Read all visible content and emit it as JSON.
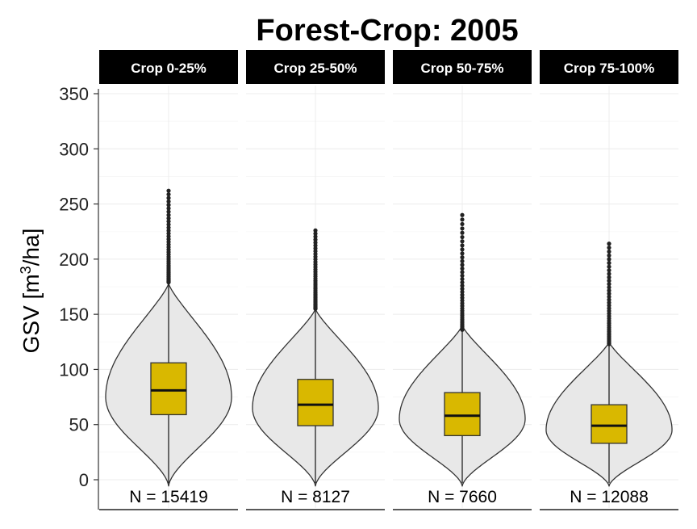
{
  "chart_data": {
    "type": "violin",
    "title": "Forest-Crop: 2005",
    "ylabel": "GSV [m³/ha]",
    "ylabel_base": "GSV [m",
    "ylabel_sup": "3",
    "ylabel_tail": "/ha]",
    "ylim": [
      0,
      350
    ],
    "yticks": [
      "0",
      "50",
      "100",
      "150",
      "200",
      "250",
      "300",
      "350"
    ],
    "grid": true,
    "fill_violin": "#e8e8e8",
    "fill_box": "#d9b800",
    "panels": [
      {
        "label": "Crop 0-25%",
        "n_text": "N = 15419",
        "q1": 59,
        "median": 81,
        "q3": 106,
        "whisker_low": 0,
        "whisker_high": 179,
        "outlier_top": 262,
        "violin_max_y": 178,
        "violin_mode": 75
      },
      {
        "label": "Crop 25-50%",
        "n_text": "N = 8127",
        "q1": 49,
        "median": 68,
        "q3": 91,
        "whisker_low": 0,
        "whisker_high": 155,
        "outlier_top": 226,
        "violin_max_y": 155,
        "violin_mode": 65
      },
      {
        "label": "Crop 50-75%",
        "n_text": "N = 7660",
        "q1": 40,
        "median": 58,
        "q3": 79,
        "whisker_low": 0,
        "whisker_high": 136,
        "outlier_top": 240,
        "violin_max_y": 140,
        "violin_mode": 55
      },
      {
        "label": "Crop 75-100%",
        "n_text": "N = 12088",
        "q1": 33,
        "median": 49,
        "q3": 68,
        "whisker_low": 0,
        "whisker_high": 123,
        "outlier_top": 214,
        "violin_max_y": 125,
        "violin_mode": 45
      }
    ]
  }
}
